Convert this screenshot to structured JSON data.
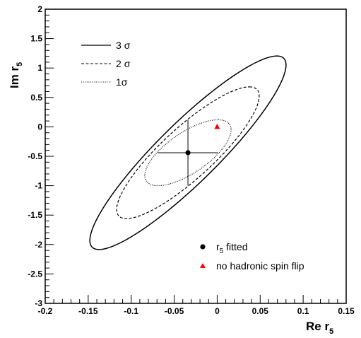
{
  "chart_data": {
    "type": "scatter",
    "xlabel": "Re r",
    "xlabel_sub": "5",
    "ylabel": "Im r",
    "ylabel_sub": "5",
    "xlim": [
      -0.2,
      0.15
    ],
    "ylim": [
      -3,
      2
    ],
    "x_ticks": [
      "-0.2",
      "-0.15",
      "-0.1",
      "-0.05",
      "0",
      "0.05",
      "0.1",
      "0.15"
    ],
    "x_tick_values": [
      -0.2,
      -0.15,
      -0.1,
      -0.05,
      0,
      0.05,
      0.1,
      0.15
    ],
    "y_ticks": [
      "-3",
      "-2.5",
      "-2",
      "-1.5",
      "-1",
      "-0.5",
      "0",
      "0.5",
      "1",
      "1.5",
      "2"
    ],
    "y_tick_values": [
      -3,
      -2.5,
      -2,
      -1.5,
      -1,
      -0.5,
      0,
      0.5,
      1,
      1.5,
      2
    ],
    "grid": false,
    "contours": [
      {
        "name": "3σ",
        "label": "3",
        "sigma_glyph": "σ",
        "style": "solid",
        "center": [
          -0.034,
          -0.44
        ],
        "semi_major": [
          0.1035,
          1.645
        ],
        "semi_minor_x": 0.0048,
        "color": "#000000"
      },
      {
        "name": "2σ",
        "label": "2",
        "sigma_glyph": "σ",
        "style": "dashed",
        "center": [
          -0.034,
          -0.44
        ],
        "semi_major": [
          0.0715,
          1.12
        ],
        "semi_minor_x": 0.0042,
        "color": "#000000"
      },
      {
        "name": "1σ",
        "label": "1",
        "sigma_glyph": "σ",
        "style": "dotted",
        "center": [
          -0.034,
          -0.44
        ],
        "semi_major": [
          0.035,
          0.56
        ],
        "semi_minor_x": 0.0036,
        "color": "#000000"
      }
    ],
    "points": [
      {
        "name": "r5 fitted",
        "label": "r",
        "label_sub": "5",
        "label_rest": " fitted",
        "x": -0.034,
        "y": -0.44,
        "x_err": 0.035,
        "y_err": 0.56,
        "marker": "circle",
        "color": "#000000"
      },
      {
        "name": "no hadronic spin flip",
        "label": "no hadronic spin flip",
        "x": 0.0,
        "y": 0.0,
        "marker": "triangle",
        "color": "#ff0000"
      }
    ],
    "legend_top": "top-left",
    "legend_bottom": "bottom-right"
  }
}
